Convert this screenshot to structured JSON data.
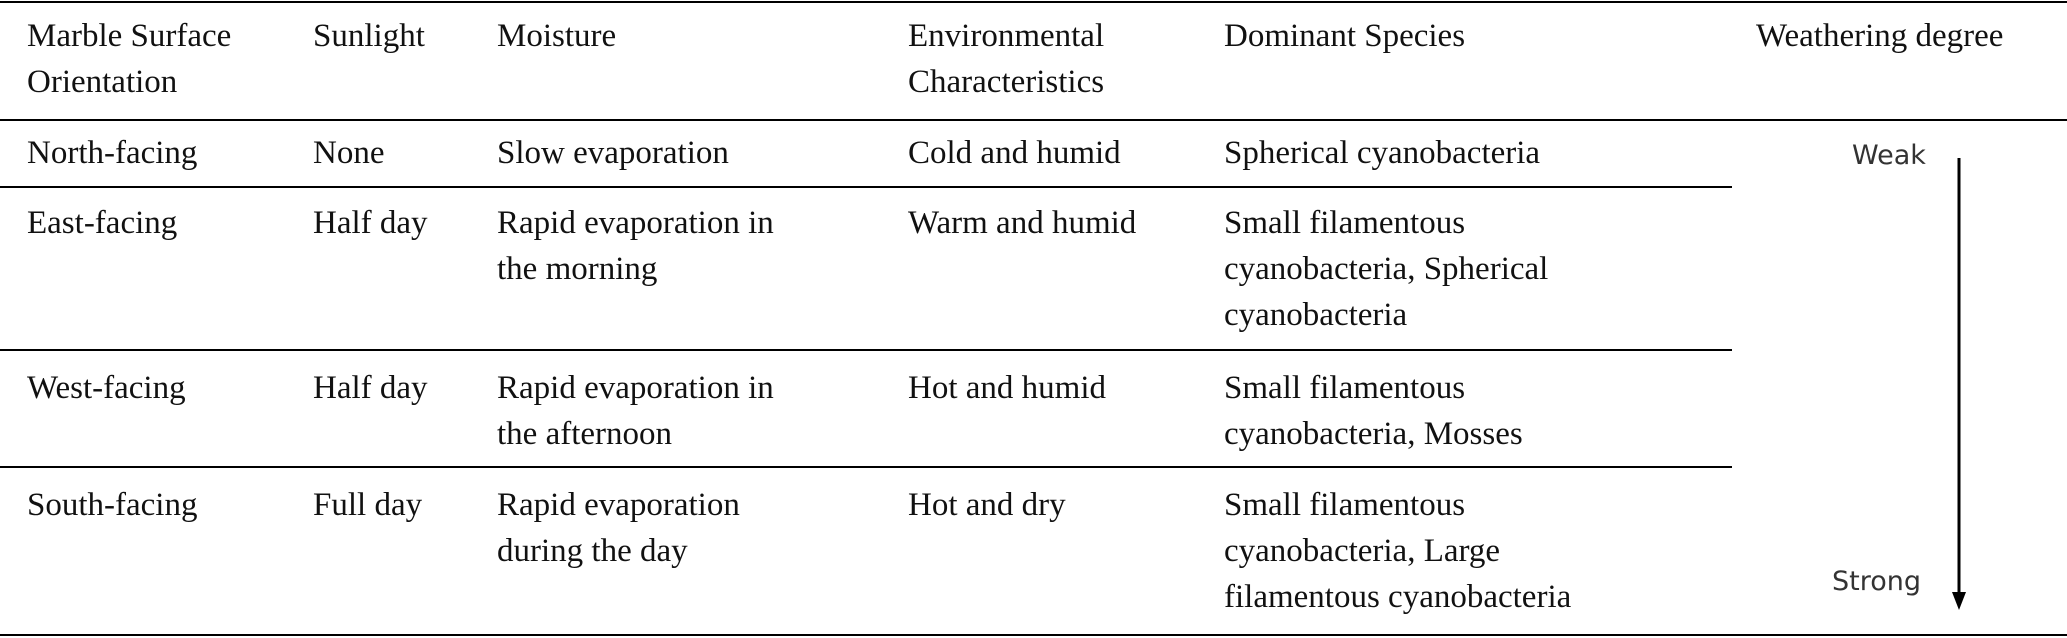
{
  "table": {
    "headers": {
      "orientation": [
        "Marble Surface",
        "Orientation"
      ],
      "sunlight": [
        "Sunlight"
      ],
      "moisture": [
        "Moisture"
      ],
      "environment": [
        "Environmental",
        "Characteristics"
      ],
      "species": [
        "Dominant Species"
      ],
      "weathering": [
        "Weathering degree"
      ]
    },
    "rows": [
      {
        "orientation": [
          "North-facing"
        ],
        "sunlight": [
          "None"
        ],
        "moisture": [
          "Slow evaporation"
        ],
        "environment": [
          "Cold and humid"
        ],
        "species": [
          "Spherical cyanobacteria"
        ]
      },
      {
        "orientation": [
          "East-facing"
        ],
        "sunlight": [
          "Half day"
        ],
        "moisture": [
          "Rapid evaporation in",
          "the morning"
        ],
        "environment": [
          "Warm and humid"
        ],
        "species": [
          "Small filamentous",
          "cyanobacteria, Spherical",
          "cyanobacteria"
        ]
      },
      {
        "orientation": [
          "West-facing"
        ],
        "sunlight": [
          "Half day"
        ],
        "moisture": [
          "Rapid evaporation in",
          "the afternoon"
        ],
        "environment": [
          "Hot and humid"
        ],
        "species": [
          "Small filamentous",
          "cyanobacteria, Mosses"
        ]
      },
      {
        "orientation": [
          "South-facing"
        ],
        "sunlight": [
          "Full day"
        ],
        "moisture": [
          "Rapid evaporation",
          "during the day"
        ],
        "environment": [
          "Hot and dry"
        ],
        "species": [
          "Small filamentous",
          "cyanobacteria, Large",
          "filamentous cyanobacteria"
        ]
      }
    ],
    "weathering_scale": {
      "top_label": "Weak",
      "bottom_label": "Strong"
    }
  }
}
